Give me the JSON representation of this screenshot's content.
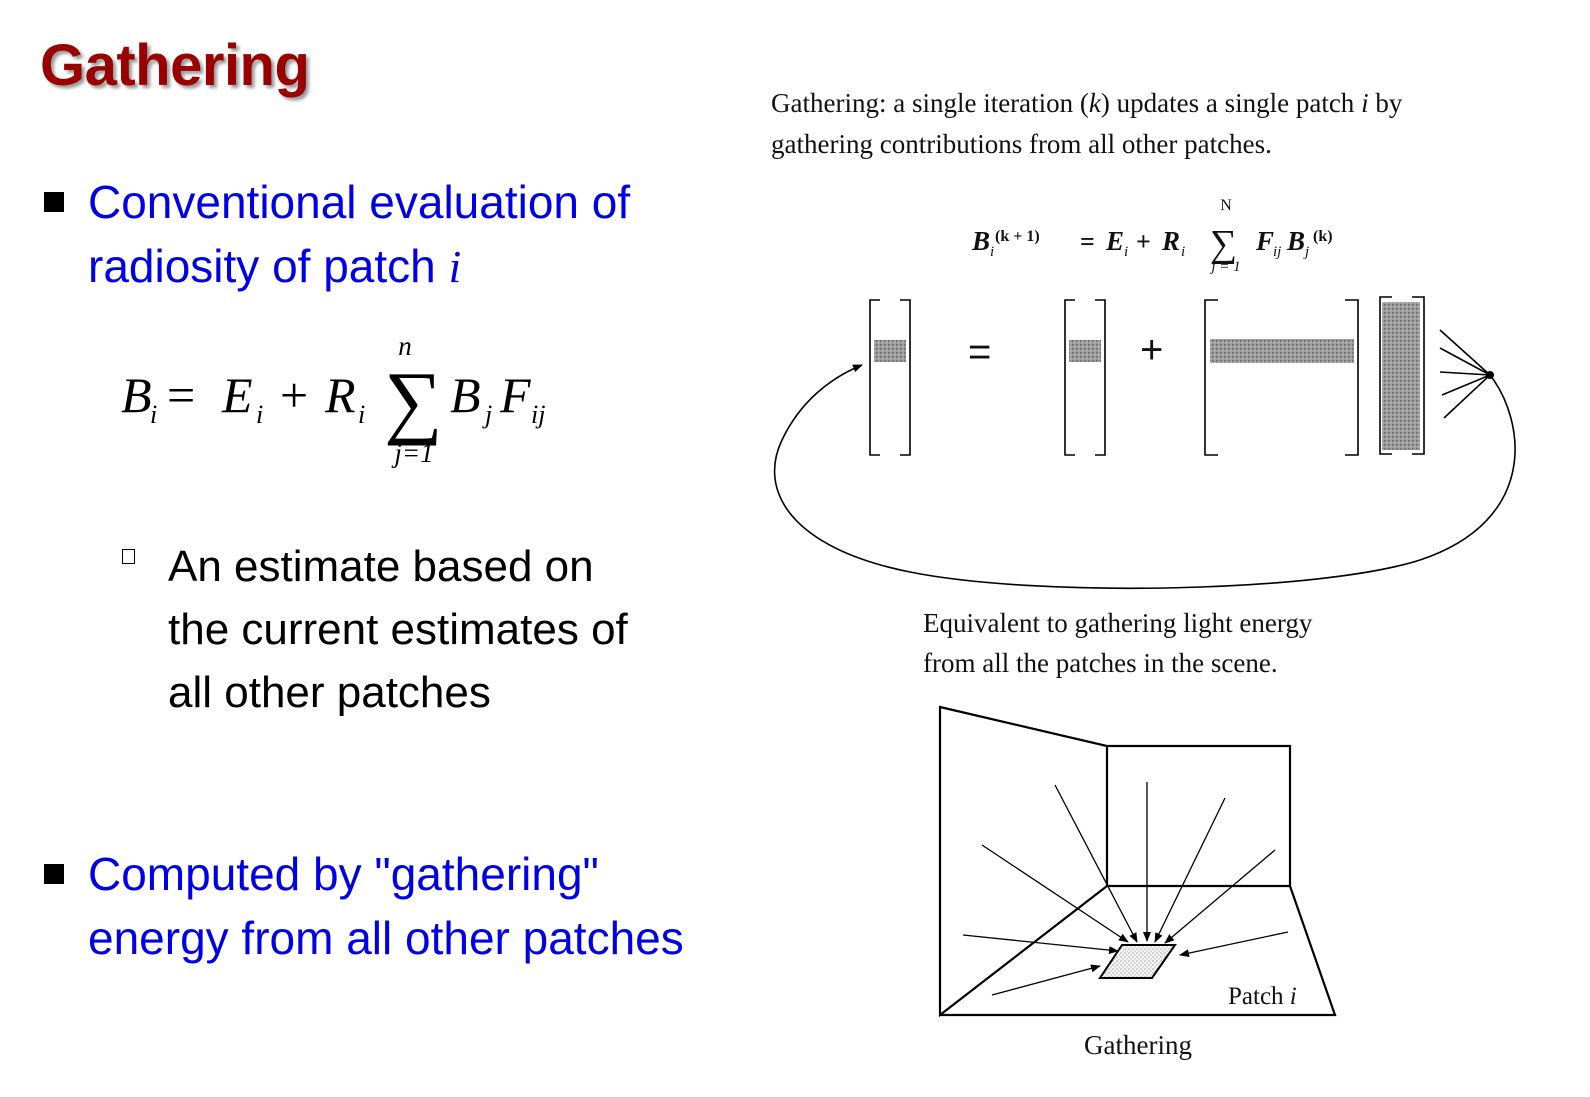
{
  "slide": {
    "title": "Gathering",
    "bullet1": {
      "line1": "Conventional evaluation of",
      "line2_prefix": "radiosity of patch ",
      "line2_var": "i"
    },
    "equation_left": {
      "lhs": "B",
      "lhs_sub": "i",
      "term1": "E",
      "term1_sub": "i",
      "term2": "R",
      "term2_sub": "i",
      "sum_upper": "n",
      "sum_lower": "j=1",
      "term3": "B",
      "term3_sub": "j",
      "term4": "F",
      "term4_sub": "ij"
    },
    "subbullet": {
      "lines": [
        "An estimate based on",
        "the current estimates of",
        "all other patches"
      ]
    },
    "bullet2": {
      "line1": "Computed by \"gathering\"",
      "line2": "energy from all other patches"
    }
  },
  "figure": {
    "caption_top": {
      "line1_a": "Gathering: a single iteration (",
      "line1_k": "k",
      "line1_b": ") updates a single patch ",
      "line1_i": "i",
      "line1_c": " by",
      "line2": "gathering contributions from all other patches."
    },
    "equation": {
      "lhs": "B",
      "lhs_sub": "i",
      "lhs_sup": "(k + 1)",
      "eq": " = ",
      "t1": "E",
      "t1_sub": "i",
      "plus": " + ",
      "t2": "R",
      "t2_sub": "i",
      "sum_upper": "N",
      "sum_lower": "j = 1",
      "t3": "F",
      "t3_sub": "ij",
      "t4": "B",
      "t4_sub": "j",
      "t4_sup": "(k)"
    },
    "matrix_ops": {
      "equals": "=",
      "plus": "+"
    },
    "caption_mid": {
      "line1": "Equivalent to gathering light energy",
      "line2": "from all the patches in the scene."
    },
    "patch_label": {
      "text": "Patch ",
      "var": "i"
    },
    "caption_bottom": "Gathering"
  }
}
